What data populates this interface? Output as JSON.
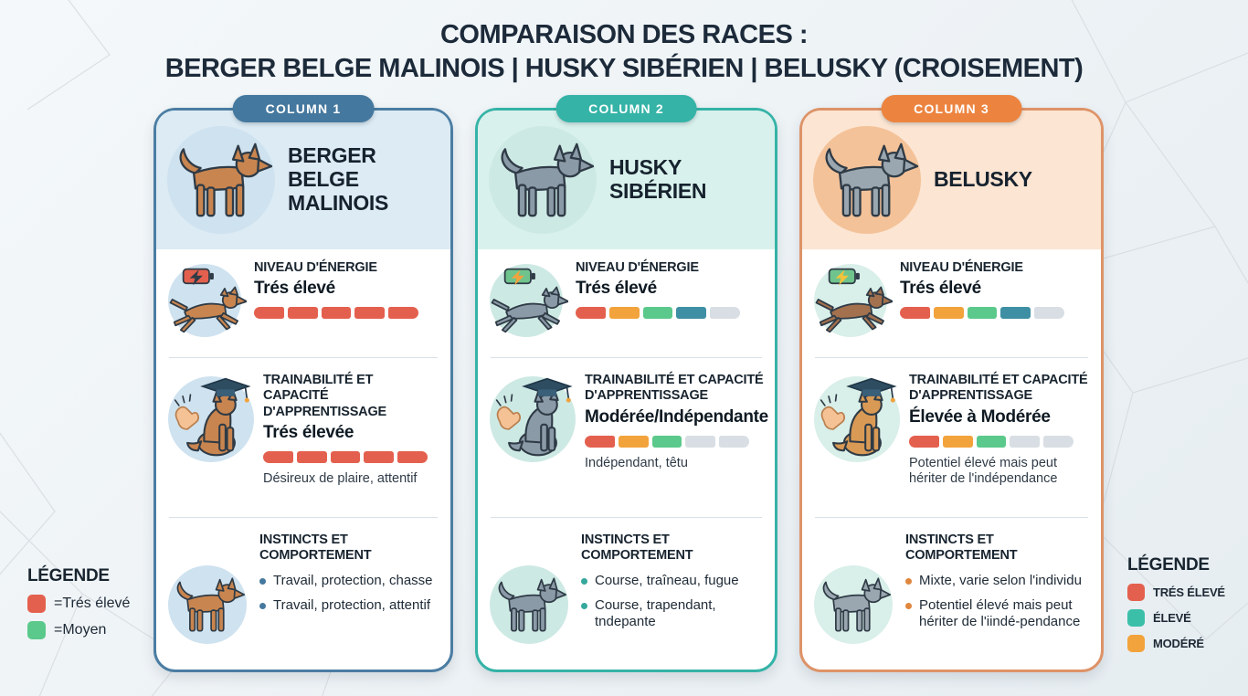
{
  "title": {
    "line1": "COMPARAISON DES RACES :",
    "line2": "BERGER BELGE MALINOIS | HUSKY SIBÉRIEN | BELUSKY (CROISEMENT)"
  },
  "bar_colors": {
    "red": "#e4604e",
    "orange": "#f2a33c",
    "green": "#5bc98b",
    "teal": "#3e8fa3",
    "gray": "#d8dee4"
  },
  "accent_colors": [
    "#45789e",
    "#35b3a7",
    "#ec8440"
  ],
  "columns": [
    {
      "tag": "COLUMN 1",
      "breed": "BERGER BELGE MALINOIS",
      "header_icon": "malinois-dog-illustration",
      "energy": {
        "icon": "running-dog-battery-icon",
        "title": "NIVEAU D'ÉNERGIE",
        "value": "Trés élevé",
        "bar": [
          "red",
          "red",
          "red",
          "red",
          "red"
        ]
      },
      "trainability": {
        "icon": "graduation-cap-dog-snap-icon",
        "title": "TRAINABILITÉ ET CAPACITÉ D'APPRENTISSAGE",
        "value": "Trés élevée",
        "bar": [
          "red",
          "red",
          "red",
          "red",
          "red"
        ],
        "note": "Désireux de plaire, attentif"
      },
      "instincts": {
        "icon": "standing-dog-icon",
        "title": "INSTINCTS ET COMPORTEMENT",
        "bullets": [
          "Travail, protection, chasse",
          "Travail, protection, attentif"
        ]
      }
    },
    {
      "tag": "COLUMN 2",
      "breed": "HUSKY SIBÉRIEN",
      "header_icon": "husky-dog-illustration",
      "energy": {
        "icon": "running-dog-battery-icon",
        "title": "NIVEAU D'ÉNERGIE",
        "value": "Trés élevé",
        "bar": [
          "red",
          "orange",
          "green",
          "teal",
          "gray"
        ]
      },
      "trainability": {
        "icon": "graduation-cap-dog-snap-icon",
        "title": "TRAINABILITÉ ET CAPACITÉ D'APPRENTISSAGE",
        "value": "Modérée/Indépendante",
        "bar": [
          "red",
          "orange",
          "green",
          "gray",
          "gray"
        ],
        "note": "Indépendant, têtu"
      },
      "instincts": {
        "icon": "standing-dog-icon",
        "title": "INSTINCTS ET COMPORTEMENT",
        "bullets": [
          "Course, traîneau, fugue",
          "Course, trapendant, tndepante"
        ]
      }
    },
    {
      "tag": "COLUMN 3",
      "breed": "BELUSKY",
      "header_icon": "belusky-dog-illustration",
      "energy": {
        "icon": "running-dog-battery-icon",
        "title": "NIVEAU D'ÉNERGIE",
        "value": "Trés élevé",
        "bar": [
          "red",
          "orange",
          "green",
          "teal",
          "gray"
        ]
      },
      "trainability": {
        "icon": "graduation-cap-dog-snap-icon",
        "title": "TRAINABILITÉ ET CAPACITÉ D'APPRENTISSAGE",
        "value": "Élevée à Modérée",
        "bar": [
          "red",
          "orange",
          "green",
          "gray",
          "gray"
        ],
        "note": "Potentiel élevé mais peut hériter de l'indépendance"
      },
      "instincts": {
        "icon": "standing-dog-icon",
        "title": "INSTINCTS ET COMPORTEMENT",
        "bullets": [
          "Mixte, varie selon l'individu",
          "Potentiel élevé mais peut hériter de l'iindé-pendance"
        ]
      }
    }
  ],
  "legend_left": {
    "title": "LÉGENDE",
    "items": [
      {
        "label": "=Trés élevé",
        "color": "#e4604e"
      },
      {
        "label": "=Moyen",
        "color": "#5bc98b"
      }
    ]
  },
  "legend_right": {
    "title": "LÉGENDE",
    "items": [
      {
        "label": "TRÉS ÉLEVÉ",
        "color": "#e4604e"
      },
      {
        "label": "ÉLEVÉ",
        "color": "#3cbfa9"
      },
      {
        "label": "MODÉRÉ",
        "color": "#f2a33c"
      }
    ]
  }
}
